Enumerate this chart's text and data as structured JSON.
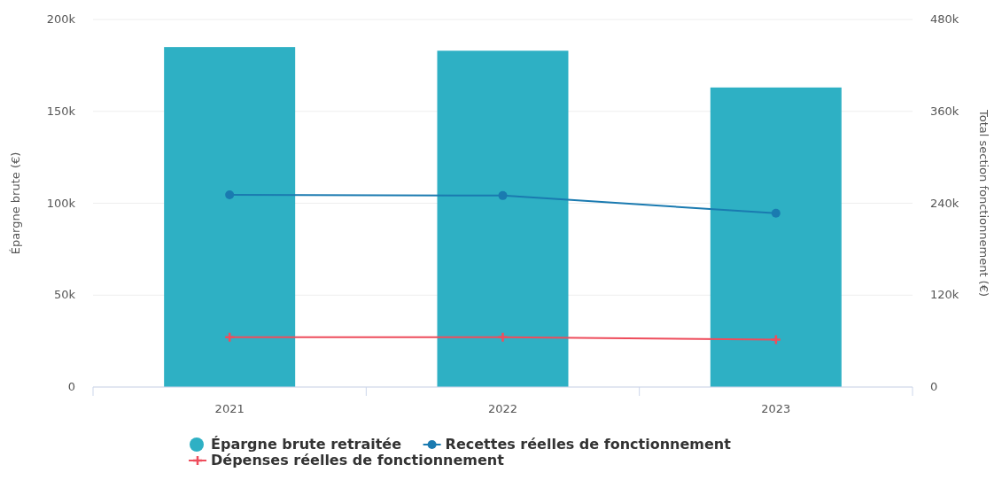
{
  "chart_data": {
    "type": "bar",
    "categories": [
      "2021",
      "2022",
      "2023"
    ],
    "ylabel": "Épargne brute (€)",
    "y2label": "Total section fonctionnement (€)",
    "ylim": [
      0,
      200000
    ],
    "yticks": [
      {
        "value": 0,
        "label": "0"
      },
      {
        "value": 50000,
        "label": "50k"
      },
      {
        "value": 100000,
        "label": "100k"
      },
      {
        "value": 150000,
        "label": "150k"
      },
      {
        "value": 200000,
        "label": "200k"
      }
    ],
    "y2lim": [
      0,
      480000
    ],
    "y2ticks": [
      {
        "value": 0,
        "label": "0"
      },
      {
        "value": 120000,
        "label": "120k"
      },
      {
        "value": 240000,
        "label": "240k"
      },
      {
        "value": 360000,
        "label": "360k"
      },
      {
        "value": 480000,
        "label": "480k"
      }
    ],
    "grid": "y",
    "legend": "bottom",
    "series": [
      {
        "name": "Épargne brute retraitée",
        "color": "#2eb0c4",
        "values": [
          185000,
          183000,
          163000
        ]
      },
      {
        "name": "Recettes réelles de fonctionnement",
        "type": "line",
        "axis": "y2",
        "color": "#1a7ab0",
        "marker": "circle",
        "values": [
          251000,
          250000,
          227000
        ]
      },
      {
        "name": "Dépenses réelles de fonctionnement",
        "type": "line",
        "axis": "y2",
        "color": "#ee4d5c",
        "marker": "cross",
        "values": [
          65000,
          65000,
          62000
        ]
      }
    ]
  }
}
